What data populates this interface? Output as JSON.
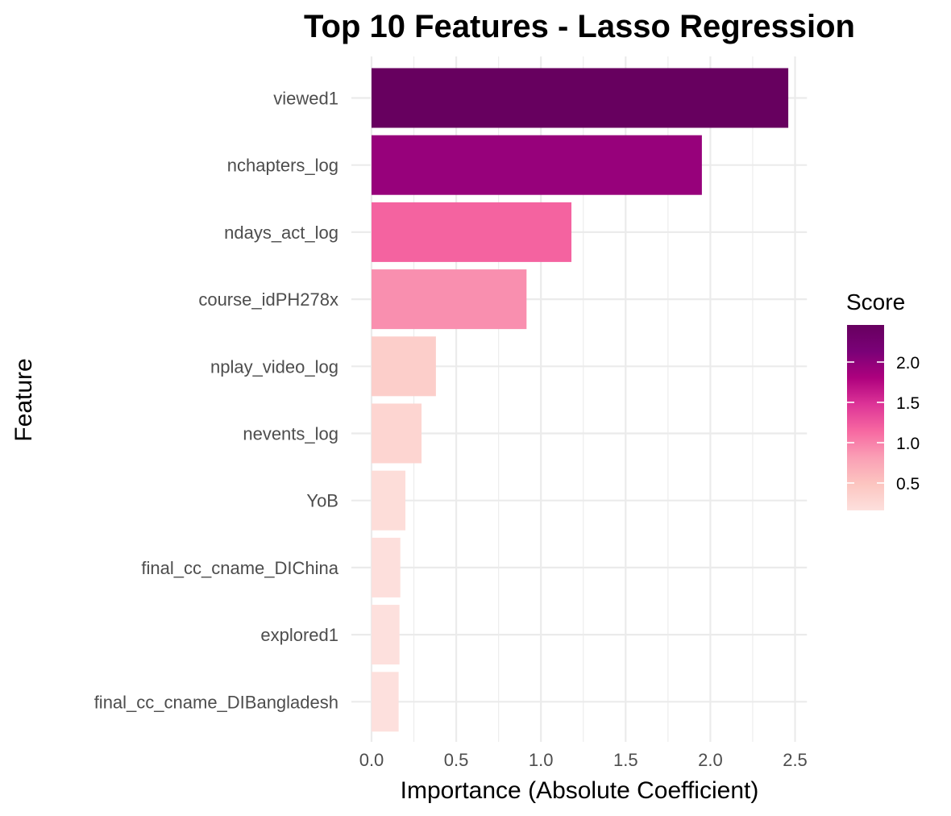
{
  "chart_data": {
    "type": "bar",
    "orientation": "horizontal",
    "title": "Top 10 Features - Lasso Regression",
    "xlabel": "Importance (Absolute Coefficient)",
    "ylabel": "Feature",
    "xlim": [
      0,
      2.55
    ],
    "x_ticks": [
      "0.0",
      "0.5",
      "1.0",
      "1.5",
      "2.0",
      "2.5"
    ],
    "categories": [
      "viewed1",
      "nchapters_log",
      "ndays_act_log",
      "course_idPH278x",
      "nplay_video_log",
      "nevents_log",
      "YoB",
      "final_cc_cname_DIChina",
      "explored1",
      "final_cc_cname_DIBangladesh"
    ],
    "values": [
      2.46,
      1.95,
      1.18,
      0.915,
      0.38,
      0.295,
      0.2,
      0.17,
      0.165,
      0.16
    ],
    "grid": true,
    "legend": {
      "title": "Score",
      "placement": "right",
      "labels": [
        "0.5",
        "1.0",
        "1.5",
        "2.0"
      ],
      "label_values": [
        0.5,
        1.0,
        1.5,
        2.0
      ],
      "range": [
        0.16,
        2.46
      ],
      "colors": [
        "#fde0dd",
        "#fcc5c0",
        "#fa9fb5",
        "#f768a1",
        "#dd3497",
        "#ae017e",
        "#7a0177",
        "#67005f"
      ]
    }
  }
}
